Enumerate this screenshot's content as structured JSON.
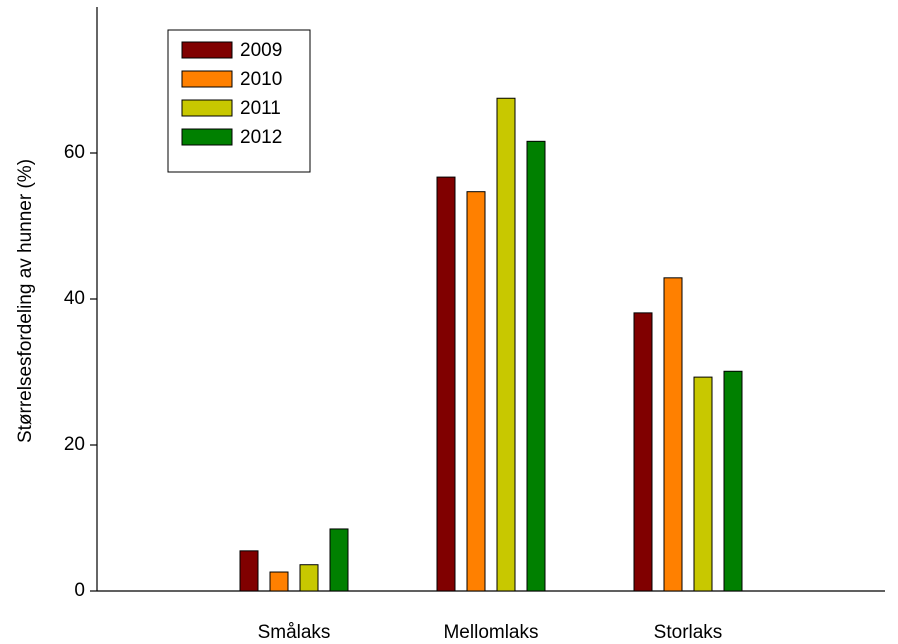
{
  "chart_data": {
    "type": "bar",
    "y_label": "Størrelsesfordeling av hunner (%)",
    "categories": [
      "Smålaks",
      "Mellomlaks",
      "Storlaks"
    ],
    "series": [
      {
        "name": "2009",
        "color": "#800000",
        "values": [
          5.5,
          56.7,
          38.1
        ]
      },
      {
        "name": "2010",
        "color": "#ff8000",
        "values": [
          2.6,
          54.7,
          42.9
        ]
      },
      {
        "name": "2011",
        "color": "#c8c800",
        "values": [
          3.6,
          67.5,
          29.3
        ]
      },
      {
        "name": "2012",
        "color": "#008000",
        "values": [
          8.5,
          61.6,
          30.1
        ]
      }
    ],
    "ylim": [
      0,
      80
    ],
    "yticks": [
      0,
      20,
      40,
      60
    ],
    "legend": "upper left"
  }
}
